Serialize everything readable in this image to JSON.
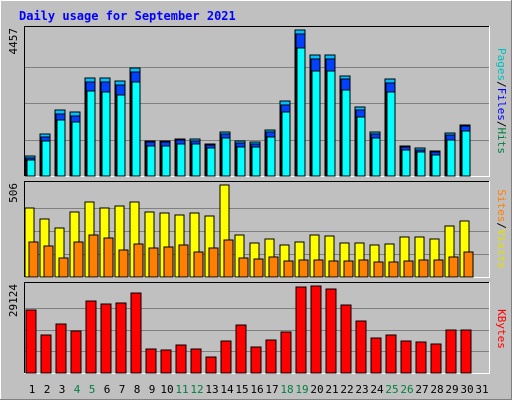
{
  "title": "Daily usage for September 2021",
  "colors": {
    "background": "#c0c0c0",
    "title": "#0000ff",
    "hits": "#00c0ff",
    "files": "#0040ff",
    "pages": "#00ffff",
    "visits": "#ffff00",
    "sites": "#ff8000",
    "kbytes": "#ff0000",
    "weekend": "#008040",
    "weekday": "#000000",
    "pages_label": "#00c0c0",
    "files_label": "#0000ff",
    "hits_label": "#008040",
    "visits_label": "#e0e000",
    "sites_label": "#ff8000",
    "kbytes_label": "#ff0000"
  },
  "chart_data": [
    {
      "type": "bar",
      "panel": "hits-files-pages",
      "ymax_label": "4457",
      "ylim": [
        0,
        4457
      ],
      "legend": {
        "pages": "Pages",
        "files": "Files",
        "hits": "Hits",
        "sep": "/"
      },
      "series": [
        {
          "name": "Hits",
          "values": [
            600,
            1270,
            2030,
            1940,
            2990,
            2980,
            2890,
            3310,
            1070,
            1070,
            1140,
            1130,
            990,
            1340,
            1060,
            1040,
            1390,
            2280,
            4457,
            3690,
            3690,
            3060,
            2110,
            1350,
            2950,
            920,
            850,
            760,
            1300,
            1570
          ]
        },
        {
          "name": "Files",
          "values": [
            560,
            1200,
            1900,
            1820,
            2860,
            2860,
            2780,
            3180,
            1030,
            1030,
            1090,
            1080,
            940,
            1290,
            1000,
            980,
            1340,
            2180,
            4350,
            3560,
            3580,
            2950,
            2020,
            1290,
            2850,
            880,
            800,
            720,
            1250,
            1520
          ]
        },
        {
          "name": "Pages",
          "values": [
            500,
            1060,
            1700,
            1640,
            2580,
            2560,
            2480,
            2860,
            930,
            920,
            980,
            970,
            840,
            1150,
            890,
            880,
            1200,
            1950,
            3900,
            3200,
            3210,
            2640,
            1810,
            1160,
            2560,
            780,
            720,
            640,
            1110,
            1360
          ]
        }
      ]
    },
    {
      "type": "bar",
      "panel": "visits-sites",
      "ymax_label": "506",
      "ylim": [
        0,
        506
      ],
      "legend": {
        "sites": "Sites",
        "visits": "Visits",
        "sep": "/"
      },
      "series": [
        {
          "name": "Visits",
          "values": [
            380,
            320,
            270,
            355,
            415,
            380,
            390,
            410,
            360,
            350,
            340,
            350,
            335,
            506,
            230,
            185,
            210,
            175,
            190,
            230,
            225,
            185,
            185,
            175,
            180,
            220,
            220,
            210,
            280,
            310
          ]
        },
        {
          "name": "Sites",
          "values": [
            190,
            170,
            105,
            195,
            230,
            215,
            150,
            180,
            160,
            165,
            175,
            135,
            160,
            205,
            105,
            100,
            110,
            90,
            95,
            95,
            90,
            90,
            95,
            85,
            80,
            90,
            95,
            95,
            110,
            140
          ]
        }
      ]
    },
    {
      "type": "bar",
      "panel": "kbytes",
      "ymax_label": "29124",
      "ylim": [
        0,
        29124
      ],
      "legend": {
        "kbytes": "KBytes"
      },
      "series": [
        {
          "name": "KBytes",
          "values": [
            21000,
            12600,
            16500,
            14000,
            24200,
            23000,
            23600,
            26800,
            8200,
            7700,
            9500,
            8200,
            5400,
            10700,
            16100,
            8800,
            11200,
            13800,
            28900,
            29124,
            28200,
            22800,
            17300,
            11800,
            12800,
            10700,
            10500,
            9800,
            14400,
            14500
          ]
        }
      ]
    }
  ],
  "x_labels": [
    "1",
    "2",
    "3",
    "4",
    "5",
    "6",
    "7",
    "8",
    "9",
    "10",
    "11",
    "12",
    "13",
    "14",
    "15",
    "16",
    "17",
    "18",
    "19",
    "20",
    "21",
    "22",
    "23",
    "24",
    "25",
    "26",
    "27",
    "28",
    "29",
    "30",
    "31"
  ],
  "weekend_days": [
    4,
    5,
    11,
    12,
    18,
    19,
    25,
    26
  ]
}
